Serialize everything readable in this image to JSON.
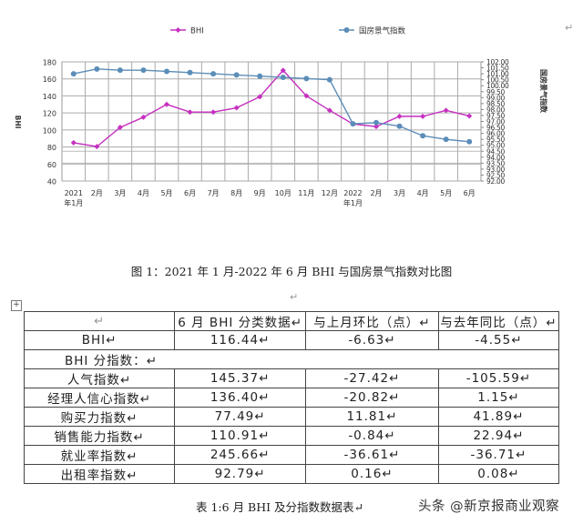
{
  "chart_data": {
    "type": "line",
    "title": "",
    "legend": [
      "BHI",
      "国房景气指数"
    ],
    "legend_position": "top",
    "grid": true,
    "categories": [
      "2021年1月",
      "2月",
      "3月",
      "4月",
      "5月",
      "6月",
      "7月",
      "8月",
      "9月",
      "10月",
      "11月",
      "12月",
      "2022年1月",
      "2月",
      "3月",
      "4月",
      "5月",
      "6月"
    ],
    "x_tick_labels": [
      [
        "2021",
        "年1月"
      ],
      [
        "2月"
      ],
      [
        "3月"
      ],
      [
        "4月"
      ],
      [
        "5月"
      ],
      [
        "6月"
      ],
      [
        "7月"
      ],
      [
        "8月"
      ],
      [
        "9月"
      ],
      [
        "10月"
      ],
      [
        "11月"
      ],
      [
        "12月"
      ],
      [
        "2022",
        "年1月"
      ],
      [
        "2月"
      ],
      [
        "3月"
      ],
      [
        "4月"
      ],
      [
        "5月"
      ],
      [
        "6月"
      ]
    ],
    "series": [
      {
        "name": "BHI",
        "axis": "left",
        "color": "#c62fc0",
        "marker": "diamond",
        "values": [
          85,
          80.5,
          103,
          115,
          130,
          121,
          121,
          126,
          139,
          170,
          140,
          123,
          107,
          104,
          116,
          116,
          123,
          116.44
        ]
      },
      {
        "name": "国房景气指数",
        "axis": "right",
        "color": "#5b8db8",
        "marker": "circle",
        "values": [
          101.0,
          101.4,
          101.3,
          101.3,
          101.2,
          101.1,
          101.0,
          100.9,
          100.8,
          100.7,
          100.6,
          100.5,
          96.8,
          96.9,
          96.6,
          95.8,
          95.5,
          95.3
        ]
      }
    ],
    "ylabel": "BHI",
    "ylim": [
      40,
      180
    ],
    "yticks": [
      40,
      60,
      80,
      100,
      120,
      140,
      160,
      180
    ],
    "y2label": "国房景气指数",
    "y2lim": [
      92,
      102
    ],
    "y2ticks": [
      "92.00",
      "92.50",
      "93.00",
      "93.50",
      "94.00",
      "94.50",
      "95.00",
      "95.50",
      "96.00",
      "96.50",
      "97.00",
      "97.50",
      "98.00",
      "98.50",
      "99.00",
      "99.50",
      "100.00",
      "100.50",
      "101.00",
      "101.50",
      "102.00"
    ]
  },
  "figure_caption": "图 1：2021 年 1 月-2022 年 6 月 BHI 与国房景气指数对比图",
  "para_mark": "↵",
  "table_move_handle": "+",
  "table": {
    "headers": [
      "↵",
      "6 月 BHI 分类数据↵",
      "与上月环比（点）↵",
      "与去年同比（点）↵"
    ],
    "bhi_row": [
      "BHI↵",
      "116.44↵",
      "-6.63↵",
      "-4.55↵"
    ],
    "subindex_label": "BHI 分指数：↵",
    "rows": [
      [
        "人气指数↵",
        "145.37↵",
        "-27.42↵",
        "-105.59↵"
      ],
      [
        "经理人信心指数↵",
        "136.40↵",
        "-20.82↵",
        "1.15↵"
      ],
      [
        "购买力指数↵",
        "77.49↵",
        "11.81↵",
        "41.89↵"
      ],
      [
        "销售能力指数↵",
        "110.91↵",
        "-0.84↵",
        "22.94↵"
      ],
      [
        "就业率指数↵",
        "245.66↵",
        "-36.61↵",
        "-36.71↵"
      ],
      [
        "出租率指数↵",
        "92.79↵",
        "0.16↵",
        "0.08↵"
      ]
    ]
  },
  "table_caption": "表 1:6 月 BHI 及分指数数据表↵",
  "watermark": "头条 @新京报商业观察"
}
